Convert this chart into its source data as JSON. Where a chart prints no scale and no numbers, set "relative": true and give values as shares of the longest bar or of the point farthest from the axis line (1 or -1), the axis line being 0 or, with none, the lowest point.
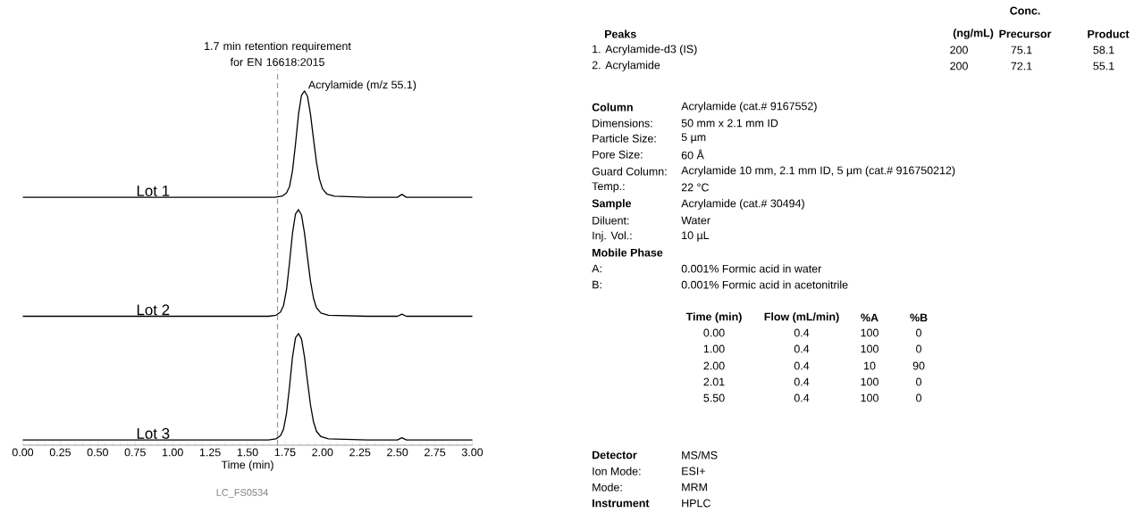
{
  "chart_data": {
    "type": "line",
    "relative": true,
    "xlabel": "Time (min)",
    "xlim": [
      0,
      3
    ],
    "xticks": [
      {
        "value": 0,
        "label": "0.00"
      },
      {
        "value": 0.25,
        "label": "0.25"
      },
      {
        "value": 0.5,
        "label": "0.50"
      },
      {
        "value": 0.75,
        "label": "0.75"
      },
      {
        "value": 1,
        "label": "1.00"
      },
      {
        "value": 1.25,
        "label": "1.25"
      },
      {
        "value": 1.5,
        "label": "1.50"
      },
      {
        "value": 1.75,
        "label": "1.75"
      },
      {
        "value": 2,
        "label": "2.00"
      },
      {
        "value": 2.25,
        "label": "2.25"
      },
      {
        "value": 2.5,
        "label": "2.50"
      },
      {
        "value": 2.75,
        "label": "2.75"
      },
      {
        "value": 3,
        "label": "3.00"
      },
      {
        "value": 0.05,
        "label": null
      },
      {
        "value": 0.1,
        "label": null
      },
      {
        "value": 0.15,
        "label": null
      },
      {
        "value": 0.2,
        "label": null
      },
      {
        "value": 0.3,
        "label": null
      },
      {
        "value": 0.35,
        "label": null
      },
      {
        "value": 0.4,
        "label": null
      },
      {
        "value": 0.45,
        "label": null
      },
      {
        "value": 0.55,
        "label": null
      },
      {
        "value": 0.6,
        "label": null
      },
      {
        "value": 0.65,
        "label": null
      },
      {
        "value": 0.7,
        "label": null
      },
      {
        "value": 0.8,
        "label": null
      },
      {
        "value": 0.85,
        "label": null
      },
      {
        "value": 0.9,
        "label": null
      },
      {
        "value": 0.95,
        "label": null
      },
      {
        "value": 1.05,
        "label": null
      },
      {
        "value": 1.1,
        "label": null
      },
      {
        "value": 1.15,
        "label": null
      },
      {
        "value": 1.2,
        "label": null
      },
      {
        "value": 1.3,
        "label": null
      },
      {
        "value": 1.35,
        "label": null
      },
      {
        "value": 1.4,
        "label": null
      },
      {
        "value": 1.45,
        "label": null
      },
      {
        "value": 1.55,
        "label": null
      },
      {
        "value": 1.6,
        "label": null
      },
      {
        "value": 1.65,
        "label": null
      },
      {
        "value": 1.7,
        "label": null
      },
      {
        "value": 1.8,
        "label": null
      },
      {
        "value": 1.85,
        "label": null
      },
      {
        "value": 1.9,
        "label": null
      },
      {
        "value": 1.95,
        "label": null
      },
      {
        "value": 2.05,
        "label": null
      },
      {
        "value": 2.1,
        "label": null
      },
      {
        "value": 2.15,
        "label": null
      },
      {
        "value": 2.2,
        "label": null
      },
      {
        "value": 2.3,
        "label": null
      },
      {
        "value": 2.35,
        "label": null
      },
      {
        "value": 2.4,
        "label": null
      },
      {
        "value": 2.45,
        "label": null
      },
      {
        "value": 2.55,
        "label": null
      },
      {
        "value": 2.6,
        "label": null
      },
      {
        "value": 2.65,
        "label": null
      },
      {
        "value": 2.7,
        "label": null
      },
      {
        "value": 2.8,
        "label": null
      },
      {
        "value": 2.85,
        "label": null
      },
      {
        "value": 2.9,
        "label": null
      },
      {
        "value": 2.95,
        "label": null
      }
    ],
    "series": [
      {
        "name": "Lot 1",
        "color": "#000000",
        "x": [
          0,
          1.5,
          1.68,
          1.73,
          1.76,
          1.78,
          1.8,
          1.82,
          1.84,
          1.86,
          1.88,
          1.9,
          1.92,
          1.94,
          1.96,
          1.98,
          2.0,
          2.03,
          2.08,
          2.3,
          2.5,
          2.53,
          2.56,
          3.0
        ],
        "values": [
          0.7,
          0.7,
          0.7,
          0.703,
          0.712,
          0.73,
          0.775,
          0.85,
          0.934,
          0.988,
          1.0,
          0.985,
          0.934,
          0.865,
          0.799,
          0.751,
          0.724,
          0.709,
          0.703,
          0.7,
          0.7,
          0.708,
          0.7,
          0.7
        ]
      },
      {
        "name": "Lot 2",
        "color": "#000000",
        "x": [
          0,
          1.5,
          1.64,
          1.69,
          1.72,
          1.74,
          1.76,
          1.78,
          1.8,
          1.82,
          1.84,
          1.86,
          1.88,
          1.9,
          1.92,
          1.94,
          1.96,
          1.99,
          2.04,
          2.3,
          2.5,
          2.53,
          2.56,
          3.0
        ],
        "values": [
          0.364,
          0.364,
          0.364,
          0.367,
          0.376,
          0.394,
          0.439,
          0.515,
          0.599,
          0.653,
          0.665,
          0.65,
          0.599,
          0.53,
          0.463,
          0.415,
          0.388,
          0.373,
          0.367,
          0.364,
          0.364,
          0.37,
          0.364,
          0.364
        ]
      },
      {
        "name": "Lot 3",
        "color": "#000000",
        "x": [
          0,
          1.5,
          1.64,
          1.69,
          1.72,
          1.74,
          1.76,
          1.78,
          1.8,
          1.82,
          1.84,
          1.86,
          1.88,
          1.9,
          1.92,
          1.94,
          1.96,
          1.99,
          2.04,
          2.3,
          2.5,
          2.53,
          2.56,
          3.0
        ],
        "values": [
          0.015,
          0.015,
          0.015,
          0.018,
          0.027,
          0.045,
          0.09,
          0.165,
          0.249,
          0.303,
          0.315,
          0.3,
          0.249,
          0.18,
          0.114,
          0.066,
          0.039,
          0.024,
          0.018,
          0.015,
          0.015,
          0.021,
          0.015,
          0.015
        ]
      }
    ],
    "ref_lines": [
      {
        "axis": "x",
        "value": 1.7,
        "label": "1.7 min retention requirement for EN 16618:2015",
        "color": "#999999",
        "line_style": "dashed"
      }
    ],
    "annotations": [
      {
        "text": "Acrylamide (m/z 55.1)",
        "x": 1.88,
        "y": 1.0
      },
      "LC_FS0534",
      "Conc.",
      "Peaks",
      "(ng/mL)",
      "Precursor",
      "Product",
      "1. Acrylamide-d3 (IS)",
      "200",
      "75.1",
      "58.1",
      "2. Acrylamide",
      "200",
      "72.1",
      "55.1",
      "Column",
      "Acrylamide (cat.# 9167552)",
      "Dimensions:",
      "50 mm x 2.1 mm ID",
      "Particle Size:",
      "5 µm",
      "Pore Size:",
      "60 Å",
      "Guard Column:",
      "Acrylamide 10 mm, 2.1 mm ID, 5 µm (cat.# 916750212)",
      "Temp.:",
      "22 °C",
      "Sample",
      "Acrylamide (cat.# 30494)",
      "Diluent:",
      "Water",
      "Inj. Vol.:",
      "10 µL",
      "Mobile Phase",
      "A:",
      "0.001% Formic acid in water",
      "B:",
      "0.001% Formic acid in acetonitrile",
      "Time (min)",
      "Flow (mL/min)",
      "%A",
      "%B",
      "0.00",
      "0.4",
      "100",
      "0",
      "1.00",
      "0.4",
      "100",
      "0",
      "2.00",
      "0.4",
      "10",
      "90",
      "2.01",
      "0.4",
      "100",
      "0",
      "5.50",
      "0.4",
      "100",
      "0",
      "Detector",
      "MS/MS",
      "Ion Mode:",
      "ESI+",
      "Mode:",
      "MRM",
      "Instrument",
      "HPLC"
    ]
  }
}
